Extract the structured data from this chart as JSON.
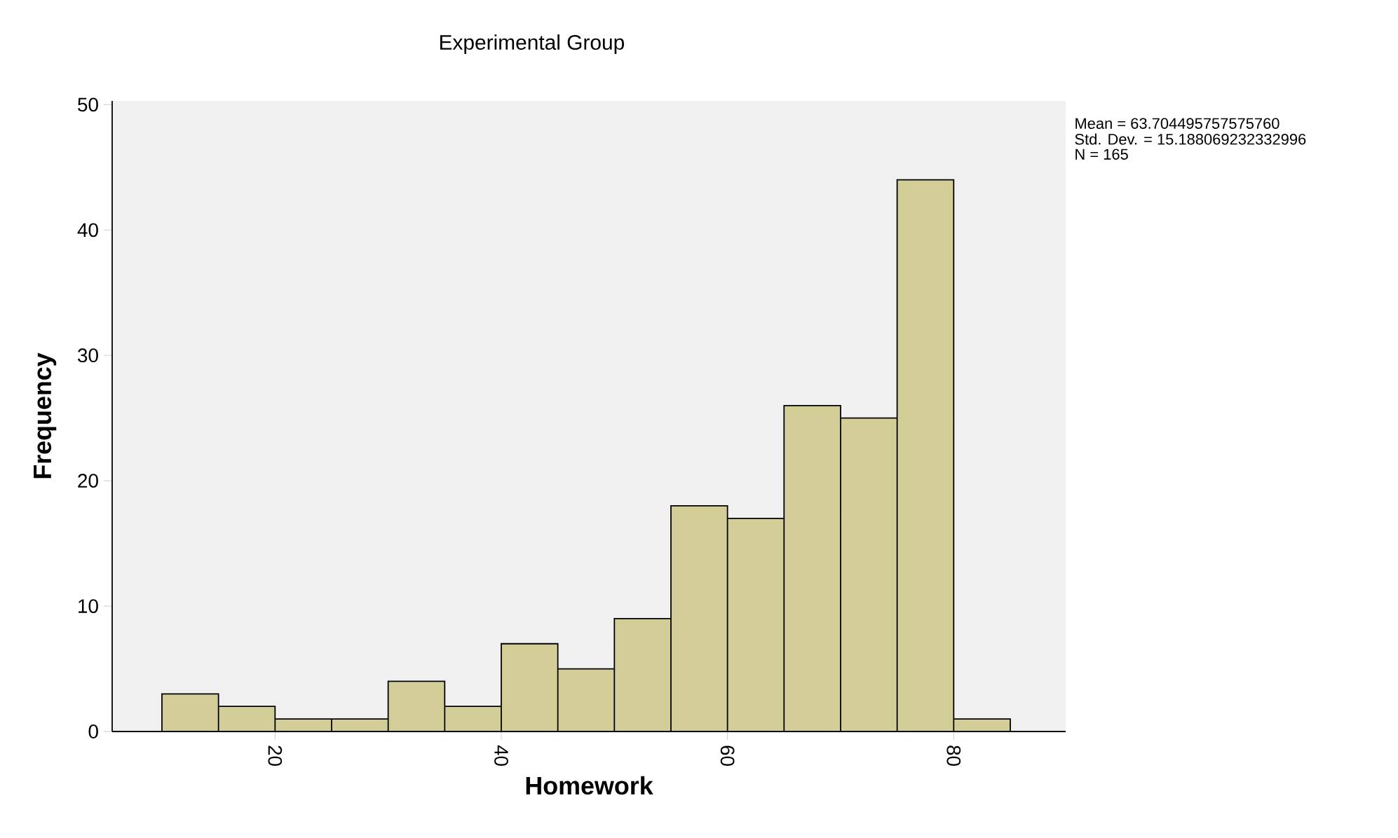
{
  "chart_data": {
    "type": "histogram",
    "title": "Experimental Group",
    "xlabel": "Homework",
    "ylabel": "Frequency",
    "bins": [
      10,
      15,
      20,
      25,
      30,
      35,
      40,
      45,
      50,
      55,
      60,
      65,
      70,
      75,
      80,
      85
    ],
    "values": [
      3,
      2,
      1,
      1,
      4,
      2,
      7,
      5,
      9,
      18,
      17,
      26,
      25,
      44,
      1
    ],
    "color": "#d3ce97",
    "xlim": [
      5.6,
      89.9
    ],
    "ylim": [
      0,
      50.3
    ],
    "xticks": [
      20,
      40,
      60,
      80
    ],
    "yticks": [
      0,
      10,
      20,
      30,
      40,
      50
    ],
    "annotations": [
      "Mean = 63.704495757575760",
      "Std. Dev. = 15.188069232332996",
      "N = 165"
    ],
    "grid": false
  }
}
